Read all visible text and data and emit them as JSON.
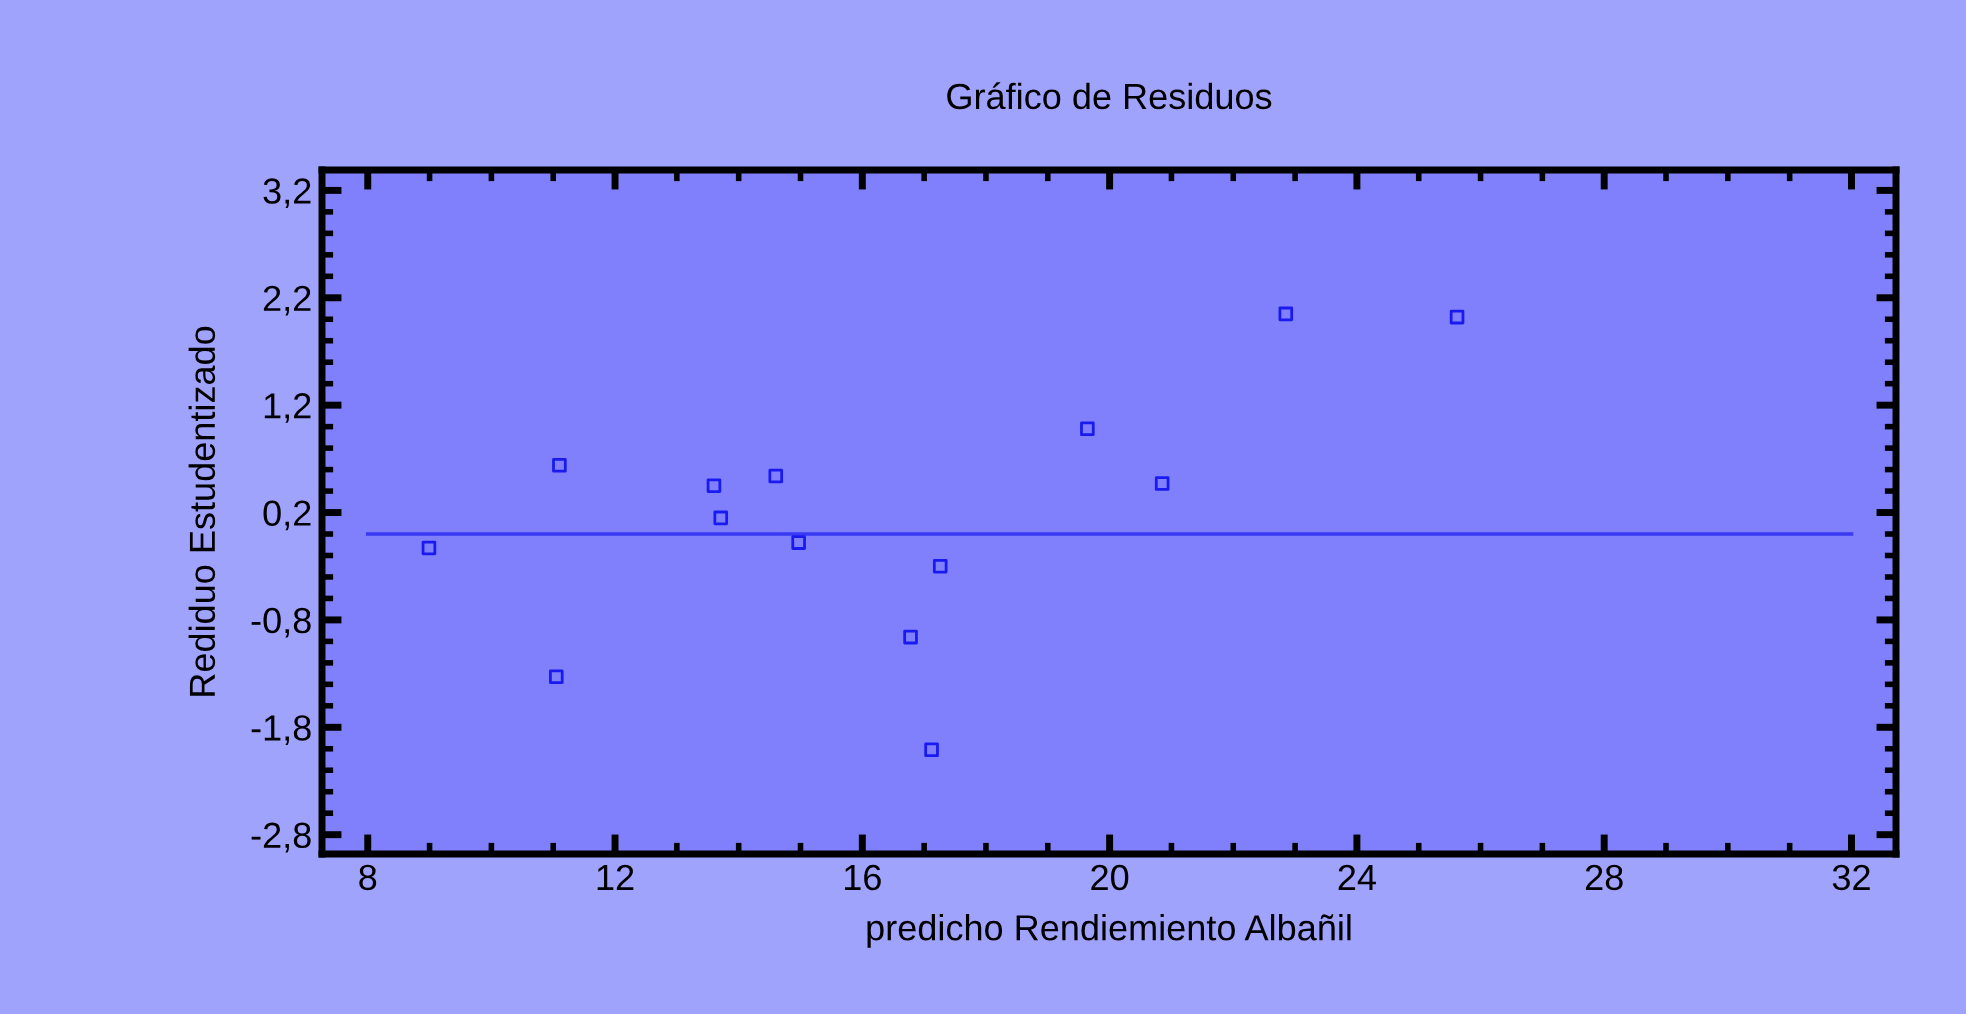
{
  "chart_data": {
    "type": "scatter",
    "title": "Gráfico de Residuos",
    "xlabel": "predicho Rendiemiento Albañil",
    "ylabel": "Rediduo Estudentizado",
    "x": [
      8.99,
      11.1,
      11.05,
      13.6,
      13.71,
      14.6,
      14.97,
      16.78,
      17.12,
      17.26,
      19.64,
      20.85,
      22.85,
      25.62
    ],
    "series": [
      {
        "color": "#1a1af0",
        "marker": "square",
        "values": [
          -0.13,
          0.64,
          -1.33,
          0.45,
          0.15,
          0.54,
          -0.08,
          -0.96,
          -2.01,
          -0.3,
          0.98,
          0.47,
          2.05,
          2.02
        ]
      },
      {
        "type": "line",
        "color": "#3a3af5",
        "marker": "none",
        "line_style": "solid",
        "x": [
          8,
          32
        ],
        "values": [
          0,
          0
        ]
      }
    ],
    "xlim": [
      7.26,
      32.72
    ],
    "xticks": [
      8,
      12,
      16,
      20,
      24,
      28,
      32
    ],
    "ylim": [
      -2.98,
      3.39
    ],
    "yticks": [
      {
        "value": -2.8,
        "label": "-2,8"
      },
      {
        "value": -1.8,
        "label": "-1,8"
      },
      {
        "value": -0.8,
        "label": "-0,8"
      },
      {
        "value": 0.2,
        "label": "0,2"
      },
      {
        "value": 1.2,
        "label": "1,2"
      },
      {
        "value": 2.2,
        "label": "2,2"
      },
      {
        "value": 3.2,
        "label": "3,2"
      }
    ],
    "grid": false,
    "legend": false
  }
}
